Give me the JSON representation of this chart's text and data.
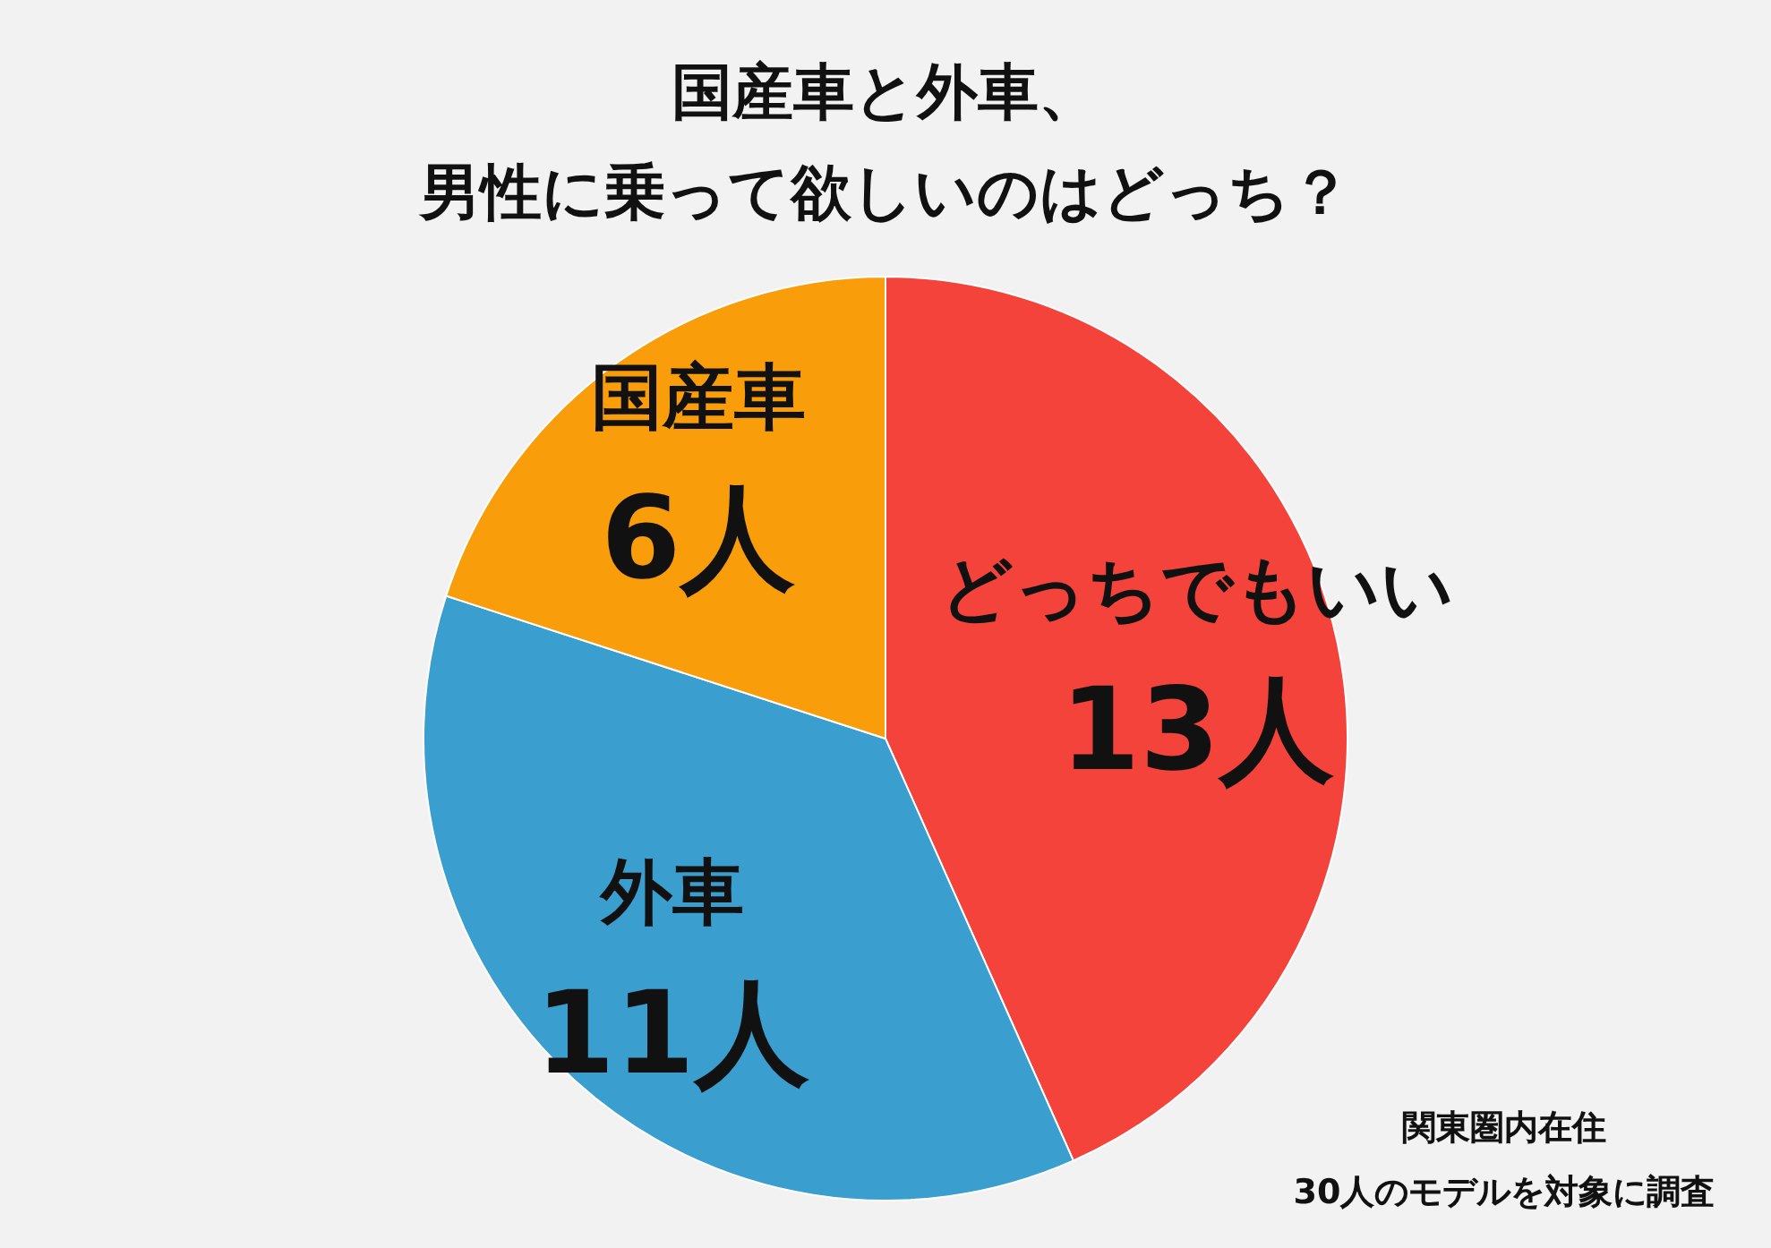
{
  "chart_data": {
    "type": "pie",
    "title": "国産車と外車、男性に乗って欲しいのはどっち？",
    "categories": [
      "どっちでもいい",
      "外車",
      "国産車"
    ],
    "values": [
      13,
      11,
      6
    ],
    "value_labels": [
      "13人",
      "11人",
      "6人"
    ],
    "colors": [
      "#f4433b",
      "#3a9fcf",
      "#f99d0b"
    ],
    "annotations": [
      "関東圏内在住",
      "30人のモデルを対象に調査"
    ]
  }
}
